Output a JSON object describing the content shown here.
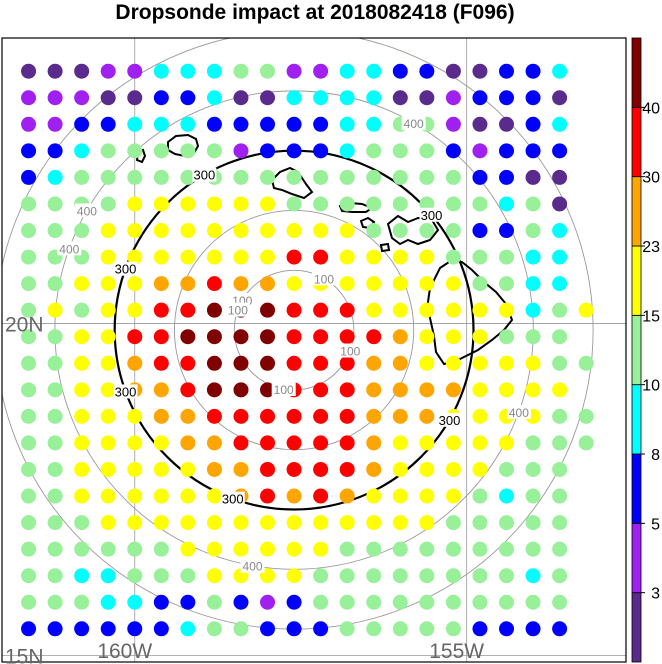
{
  "title": "Dropsonde impact at 2018082418 (F096)",
  "chart_data": {
    "type": "scatter",
    "title": "Dropsonde impact at 2018082418 (F096)",
    "lon_ticks": [
      {
        "value": -160,
        "label": "160W"
      },
      {
        "value": -155,
        "label": "155W"
      }
    ],
    "lat_ticks": [
      {
        "value": 20,
        "label": "20N"
      },
      {
        "value": 15,
        "label": "15N"
      }
    ],
    "xlim": [
      -162.0,
      -152.6
    ],
    "ylim": [
      14.9,
      24.3
    ],
    "grid": true,
    "center": {
      "lon": -157.6,
      "lat": 19.9
    },
    "range_rings": [
      {
        "km": 100,
        "label": "100",
        "style": "gray"
      },
      {
        "km": 200,
        "label": "",
        "style": "gray"
      },
      {
        "km": 300,
        "label": "300",
        "style": "black"
      },
      {
        "km": 400,
        "label": "400",
        "style": "gray"
      },
      {
        "km": 500,
        "label": "",
        "style": "gray"
      }
    ],
    "colorbar": {
      "levels": [
        "3",
        "5",
        "8",
        "10",
        "15",
        "23",
        "30",
        "40"
      ],
      "colors": [
        "#5a2a8c",
        "#a020f0",
        "#0000ff",
        "#00ffff",
        "#98f098",
        "#ffff00",
        "#ffa500",
        "#ff0000",
        "#800000"
      ]
    },
    "grid_lon_start": -161.6,
    "grid_lon_step": 0.4,
    "grid_lat_start": 23.8,
    "grid_lat_step": -0.4,
    "color_classes_by_row": [
      "000113334411332200223",
      "111002230033330012220",
      "112233322222334410023",
      "223444441222344421222",
      "234444444444444442200",
      "444455555544444444340",
      "444555555555544442243",
      "444555555577555544433",
      "445556676655555554433",
      "4545577888777555555345",
      "445577888877776555444",
      "4455677888777665555544",
      "445566788877766665555",
      "4455566777777666555544",
      "4455556677777655555444",
      "445555566777765555444",
      "445555556767655554344",
      "444555555555555544444",
      "444444555555444444444",
      "443344455554444444434",
      "444332242124444444444",
      "222222344222444442222"
    ]
  }
}
